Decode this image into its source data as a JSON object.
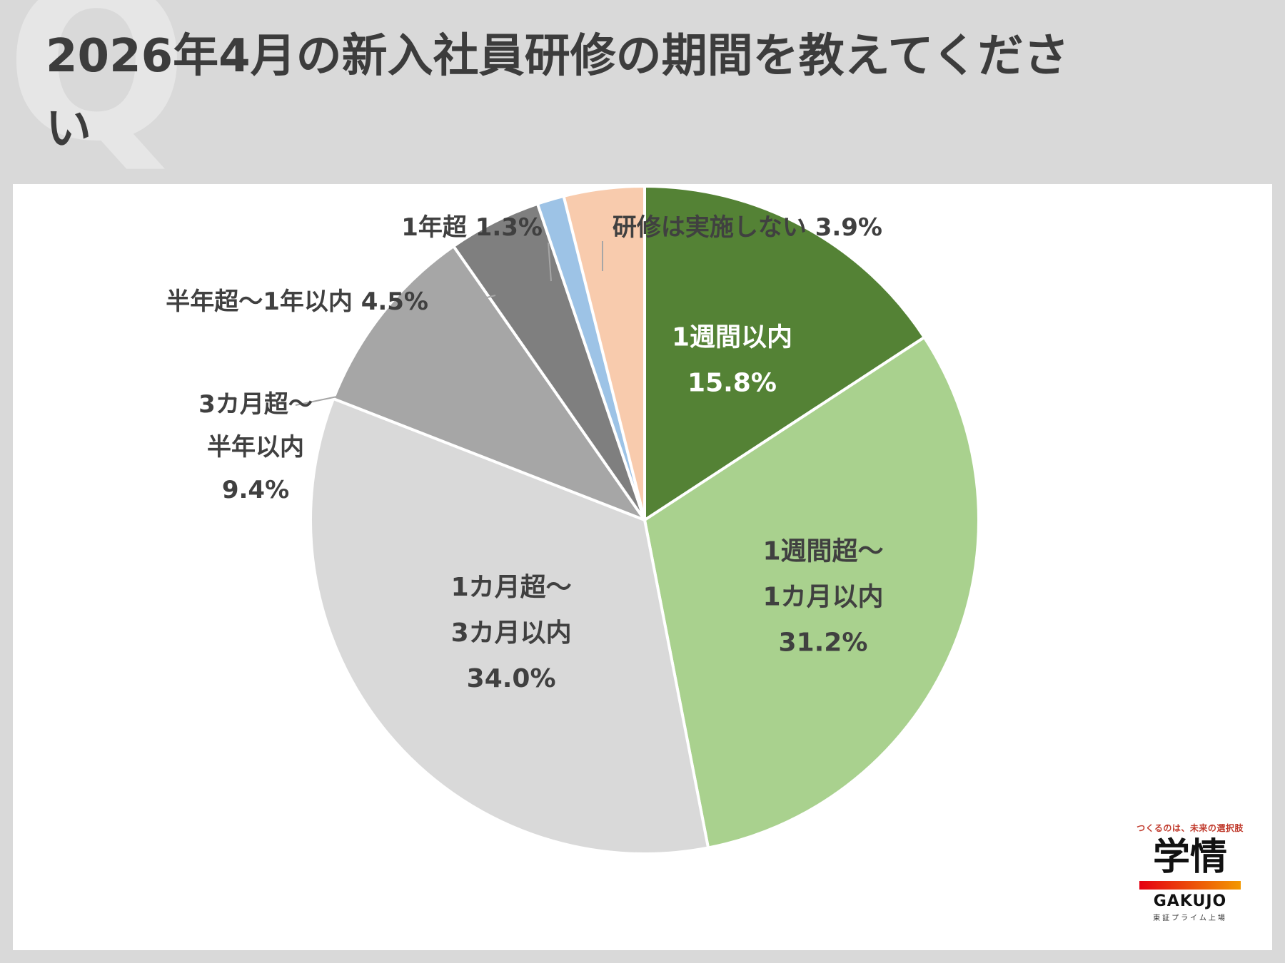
{
  "title": "2026年4月の新入社員研修の期間を教えてください",
  "watermark": "Q",
  "chart_data": {
    "type": "pie",
    "start_angle_deg": 0,
    "direction": "clockwise",
    "slices": [
      {
        "label": [
          "1週間以内"
        ],
        "value": 15.8,
        "display": "15.8%",
        "color": "#548235",
        "text_color": "#ffffff",
        "placement": "inside"
      },
      {
        "label": [
          "1週間超～",
          "1カ月以内"
        ],
        "value": 31.2,
        "display": "31.2%",
        "color": "#a9d18e",
        "text_color": "#404040",
        "placement": "inside"
      },
      {
        "label": [
          "1カ月超～",
          "3カ月以内"
        ],
        "value": 34.0,
        "display": "34.0%",
        "color": "#d9d9d9",
        "text_color": "#404040",
        "placement": "inside"
      },
      {
        "label": [
          "3カ月超～",
          "半年以内"
        ],
        "value": 9.4,
        "display": "9.4%",
        "color": "#a6a6a6",
        "text_color": "#404040",
        "placement": "outside"
      },
      {
        "label": [
          "半年超～1年以内"
        ],
        "value": 4.5,
        "display": "4.5%",
        "color": "#7f7f7f",
        "text_color": "#404040",
        "placement": "outside"
      },
      {
        "label": [
          "1年超"
        ],
        "value": 1.3,
        "display": "1.3%",
        "color": "#9dc3e6",
        "text_color": "#404040",
        "placement": "outside"
      },
      {
        "label": [
          "研修は実施しない"
        ],
        "value": 3.9,
        "display": "3.9%",
        "color": "#f8cbad",
        "text_color": "#404040",
        "placement": "outside"
      }
    ]
  },
  "logo": {
    "tagline": "つくるのは、未来の選択肢",
    "kanji": "学情",
    "en": "GAKUJO",
    "sub": "東証プライム上場"
  }
}
